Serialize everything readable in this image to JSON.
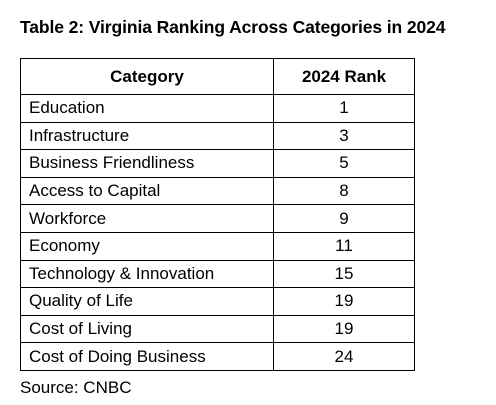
{
  "caption": "Table 2: Virginia Ranking Across Categories in 2024",
  "table": {
    "headers": [
      "Category",
      "2024 Rank"
    ],
    "rows": [
      {
        "category": "Education",
        "rank": "1"
      },
      {
        "category": "Infrastructure",
        "rank": "3"
      },
      {
        "category": "Business Friendliness",
        "rank": "5"
      },
      {
        "category": "Access to Capital",
        "rank": "8"
      },
      {
        "category": "Workforce",
        "rank": "9"
      },
      {
        "category": "Economy",
        "rank": "11"
      },
      {
        "category": "Technology & Innovation",
        "rank": "15"
      },
      {
        "category": "Quality of Life",
        "rank": "19"
      },
      {
        "category": "Cost of Living",
        "rank": "19"
      },
      {
        "category": "Cost of Doing Business",
        "rank": "24"
      }
    ]
  },
  "source": "Source: CNBC"
}
